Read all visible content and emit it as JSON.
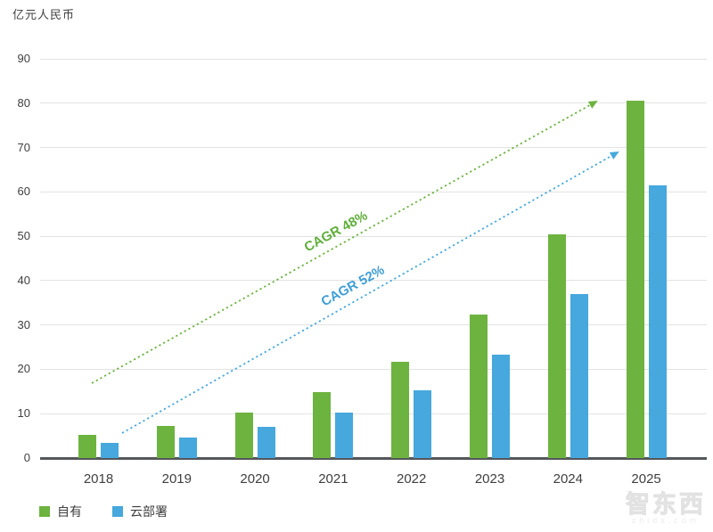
{
  "chart_data": {
    "type": "bar",
    "title": "亿元人民币",
    "categories": [
      "2018",
      "2019",
      "2020",
      "2021",
      "2022",
      "2023",
      "2024",
      "2025"
    ],
    "series": [
      {
        "name": "自有",
        "color": "#6db33f",
        "values": [
          5.2,
          7.3,
          10.3,
          14.8,
          21.6,
          32.3,
          50.4,
          80.5
        ]
      },
      {
        "name": "云部署",
        "color": "#46a8dd",
        "values": [
          3.4,
          4.7,
          7.0,
          10.3,
          15.3,
          23.3,
          37.0,
          61.5
        ]
      }
    ],
    "ylim": [
      0,
      90
    ],
    "ytick_step": 10,
    "grid": true,
    "legend_position": "bottom-left",
    "annotations": [
      {
        "text": "CAGR 48%",
        "color": "#5fae3a",
        "series": "自有"
      },
      {
        "text": "CAGR 52%",
        "color": "#3e9ed6",
        "series": "云部署"
      }
    ]
  },
  "watermark": {
    "title": "智东西",
    "subtitle": "zhidx.com"
  }
}
